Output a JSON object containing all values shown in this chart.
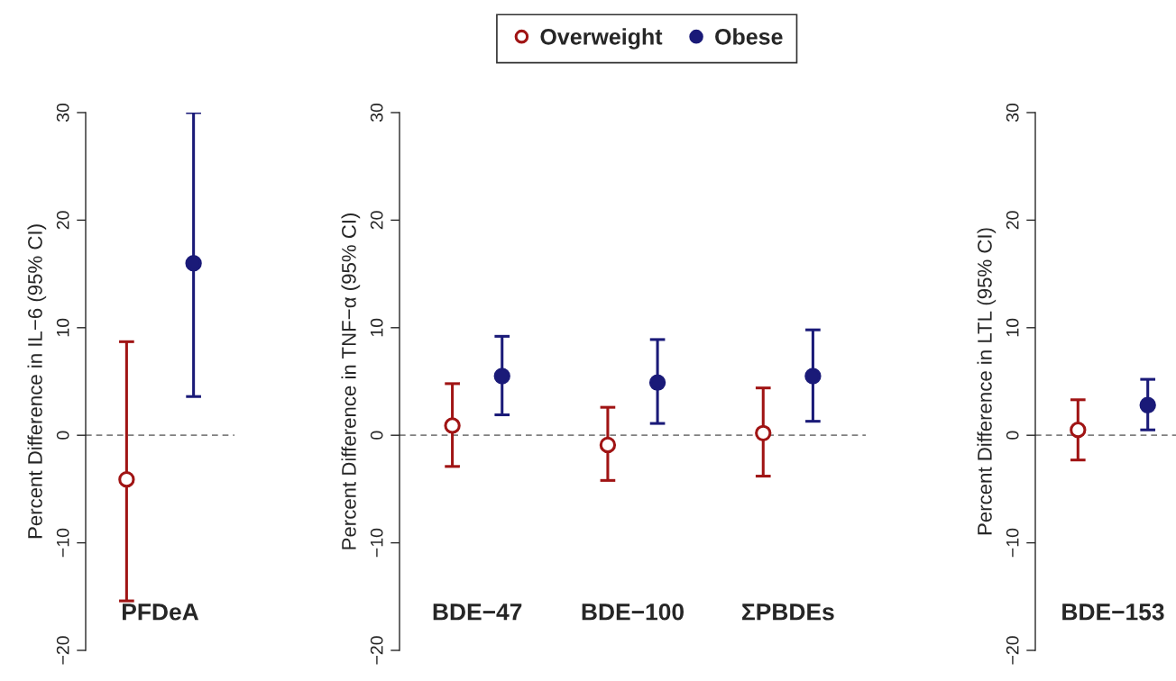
{
  "chart_data": [
    {
      "type": "scatter",
      "ylabel": "Percent Difference in IL−6 (95% CI)",
      "categories": [
        "PFDeA"
      ],
      "ylim": [
        -20,
        30
      ],
      "yticks": [
        -20,
        -10,
        0,
        10,
        20,
        30
      ],
      "legend": "top",
      "marker": "circle",
      "grid": false,
      "ref_lines": [
        {
          "axis": "y",
          "value": 0,
          "color": "#808080",
          "line_style": "dashed"
        }
      ],
      "series": [
        {
          "name": "Overweight",
          "color": "#a01414",
          "values": [
            -4.1
          ],
          "errors": [
            [
              -15.4,
              8.7
            ]
          ]
        },
        {
          "name": "Obese",
          "color": "#1a1a78",
          "values": [
            16.0
          ],
          "errors": [
            [
              3.6,
              30.0
            ]
          ]
        }
      ]
    },
    {
      "type": "scatter",
      "ylabel": "Percent Difference in TNF−α (95% CI)",
      "categories": [
        "BDE−47",
        "BDE−100",
        "ΣPBDEs"
      ],
      "ylim": [
        -20,
        30
      ],
      "yticks": [
        -20,
        -10,
        0,
        10,
        20,
        30
      ],
      "marker": "circle",
      "grid": false,
      "ref_lines": [
        {
          "axis": "y",
          "value": 0,
          "color": "#808080",
          "line_style": "dashed"
        }
      ],
      "series": [
        {
          "color": "#a01414",
          "values": [
            0.9,
            -0.9,
            0.2
          ],
          "errors": [
            [
              -2.9,
              4.8
            ],
            [
              -4.2,
              2.6
            ],
            [
              -3.8,
              4.4
            ]
          ]
        },
        {
          "color": "#1a1a78",
          "values": [
            5.5,
            4.9,
            5.5
          ],
          "errors": [
            [
              1.9,
              9.2
            ],
            [
              1.1,
              8.9
            ],
            [
              1.3,
              9.8
            ]
          ]
        }
      ]
    },
    {
      "type": "scatter",
      "ylabel": "Percent Difference in LTL (95% CI)",
      "categories": [
        "BDE−153"
      ],
      "ylim": [
        -20,
        30
      ],
      "yticks": [
        -20,
        -10,
        0,
        10,
        20,
        30
      ],
      "marker": "circle",
      "grid": false,
      "ref_lines": [
        {
          "axis": "y",
          "value": 0,
          "color": "#808080",
          "line_style": "dashed"
        }
      ],
      "series": [
        {
          "color": "#a01414",
          "values": [
            0.5
          ],
          "errors": [
            [
              -2.3,
              3.3
            ]
          ]
        },
        {
          "color": "#1a1a78",
          "values": [
            2.8
          ],
          "errors": [
            [
              0.5,
              5.2
            ]
          ]
        }
      ]
    }
  ]
}
